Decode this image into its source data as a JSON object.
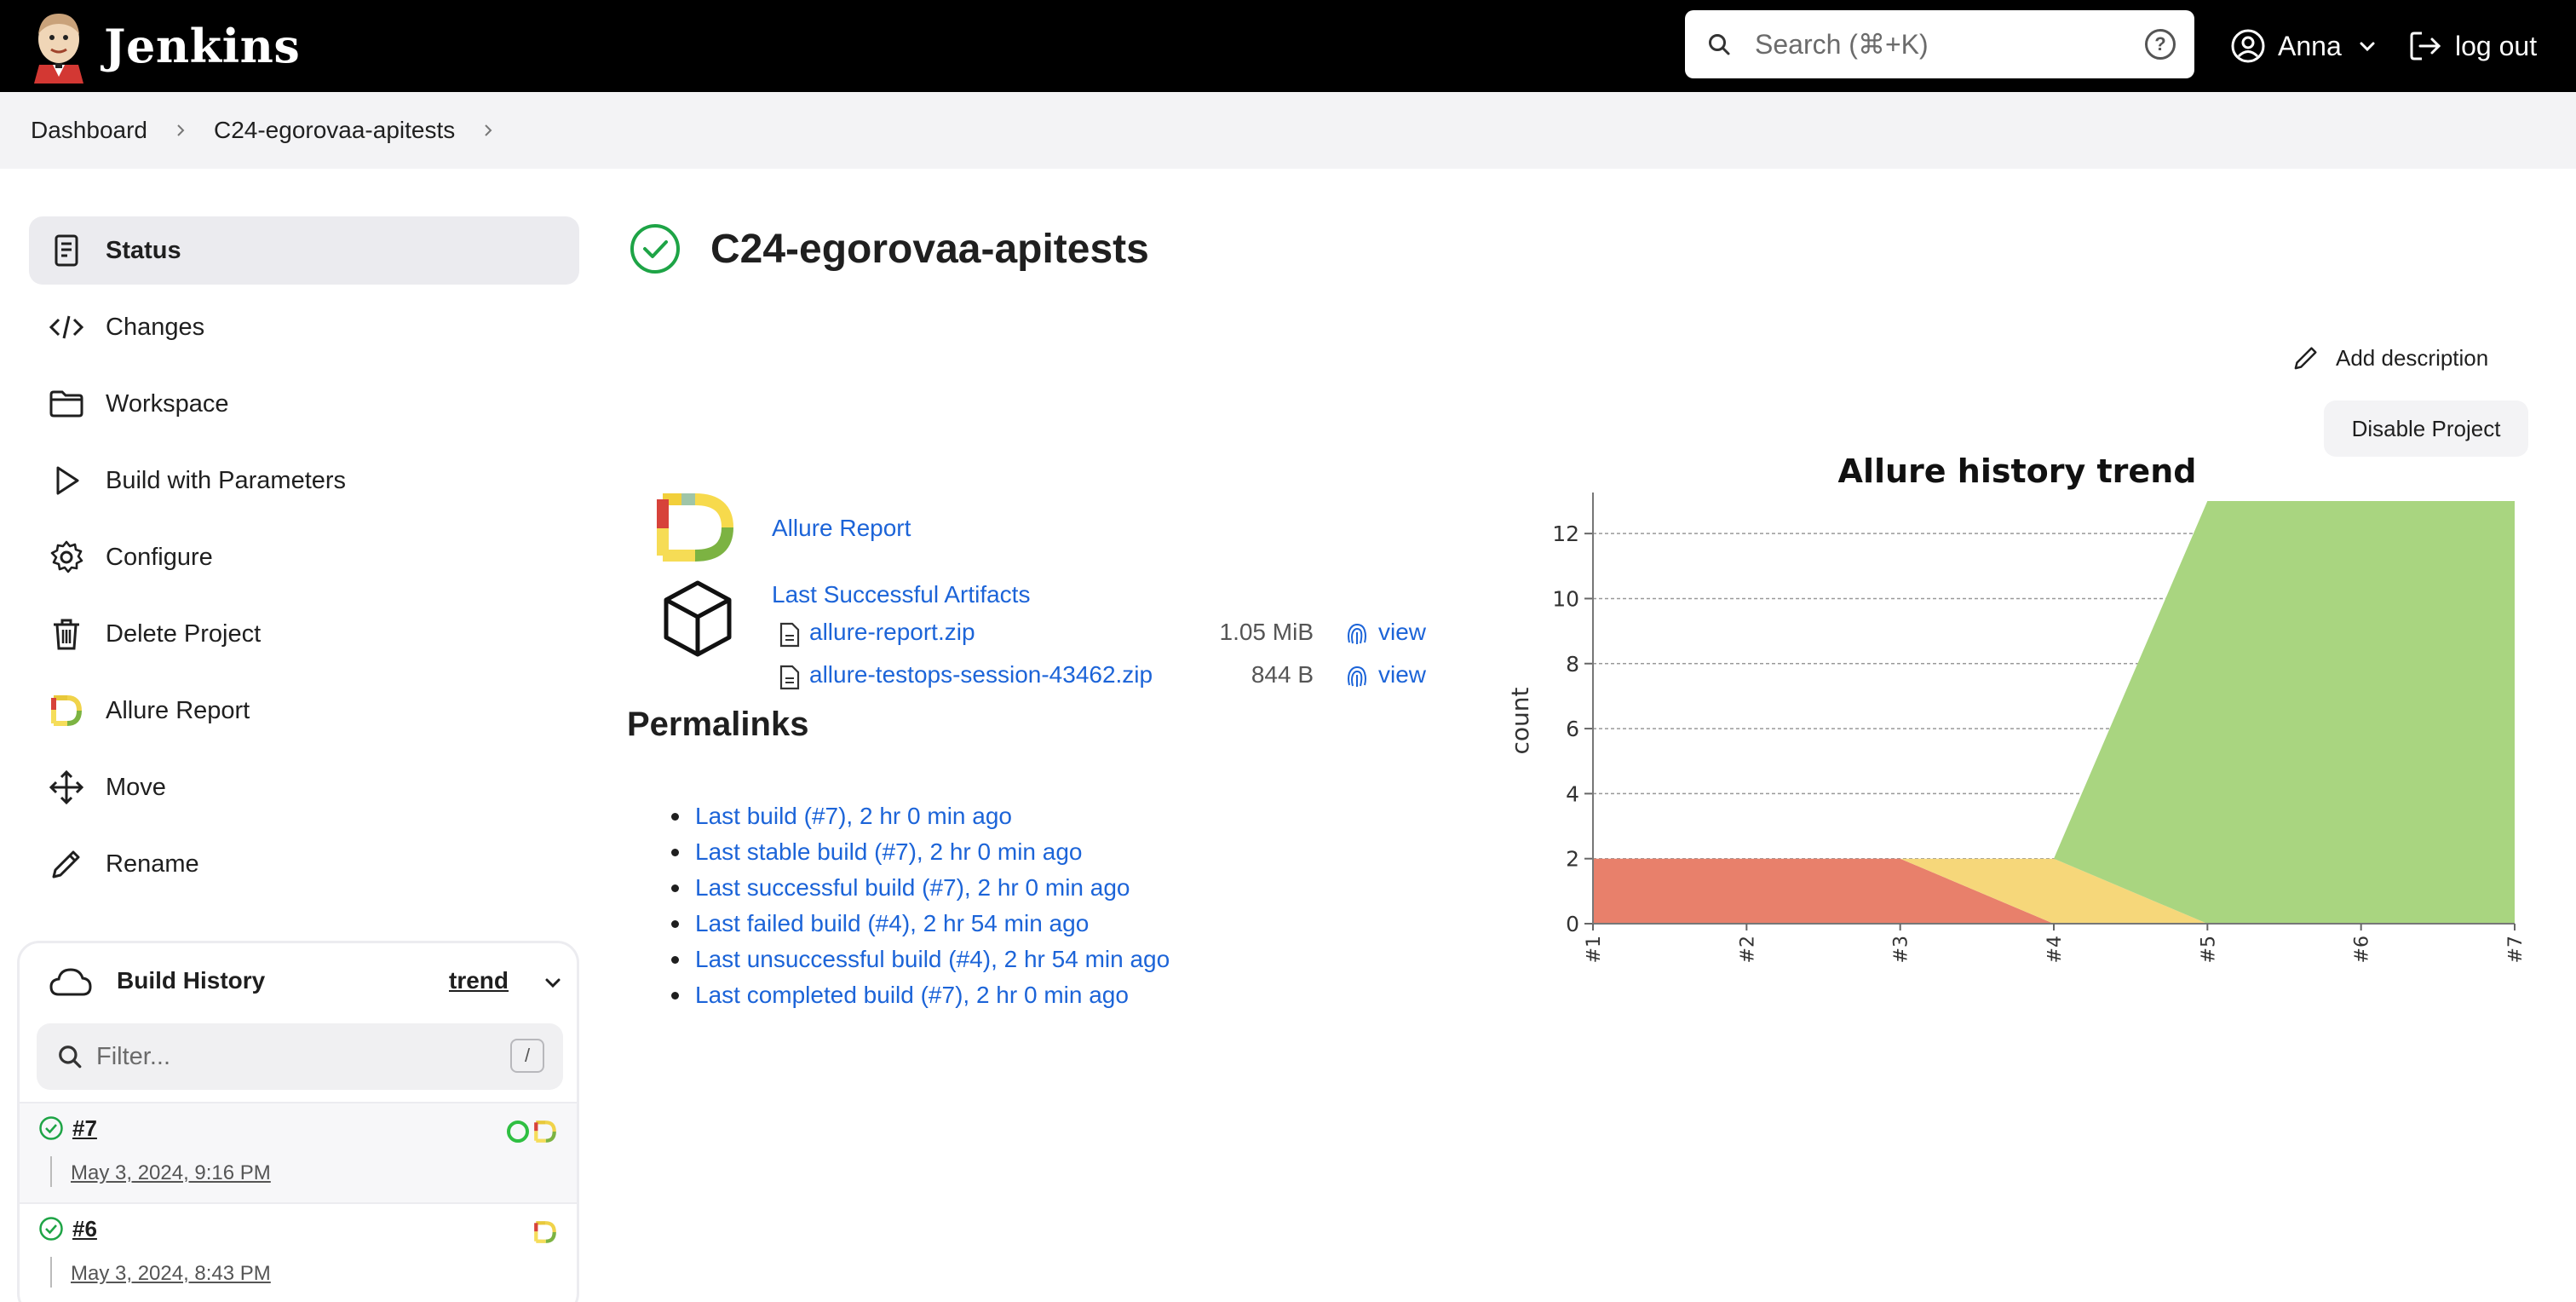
{
  "header": {
    "app_name": "Jenkins",
    "search_placeholder": "Search (⌘+K)",
    "help_label": "?",
    "user_name": "Anna",
    "logout_label": "log out"
  },
  "breadcrumb": [
    "Dashboard",
    "C24-egorovaa-apitests"
  ],
  "sidebar": {
    "items": [
      {
        "label": "Status",
        "icon": "status-icon",
        "active": true
      },
      {
        "label": "Changes",
        "icon": "code-icon"
      },
      {
        "label": "Workspace",
        "icon": "folder-icon"
      },
      {
        "label": "Build with Parameters",
        "icon": "play-icon"
      },
      {
        "label": "Configure",
        "icon": "gear-icon"
      },
      {
        "label": "Delete Project",
        "icon": "trash-icon"
      },
      {
        "label": "Allure Report",
        "icon": "allure-icon"
      },
      {
        "label": "Move",
        "icon": "move-icon"
      },
      {
        "label": "Rename",
        "icon": "pencil-icon"
      }
    ]
  },
  "build_history": {
    "title": "Build History",
    "trend_label": "trend",
    "filter_placeholder": "Filter...",
    "filter_shortcut": "/",
    "builds": [
      {
        "number": "#7",
        "date": "May 3, 2024, 9:16 PM"
      },
      {
        "number": "#6",
        "date": "May 3, 2024, 8:43 PM"
      }
    ]
  },
  "main": {
    "title": "C24-egorovaa-apitests",
    "add_description": "Add description",
    "disable_project": "Disable Project",
    "allure_report_link": "Allure Report",
    "last_successful_artifacts": "Last Successful Artifacts",
    "artifacts": [
      {
        "name": "allure-report.zip",
        "size": "1.05 MiB",
        "view": "view"
      },
      {
        "name": "allure-testops-session-43462.zip",
        "size": "844 B",
        "view": "view"
      }
    ],
    "permalinks_title": "Permalinks",
    "permalinks": [
      "Last build (#7), 2 hr 0 min ago",
      "Last stable build (#7), 2 hr 0 min ago",
      "Last successful build (#7), 2 hr 0 min ago",
      "Last failed build (#4), 2 hr 54 min ago",
      "Last unsuccessful build (#4), 2 hr 54 min ago",
      "Last completed build (#7), 2 hr 0 min ago"
    ]
  },
  "colors": {
    "accent_link": "#1c64d8",
    "success": "#1ea446",
    "failed": "#e8806b",
    "broken": "#f6d77a",
    "passed": "#a9d580"
  },
  "chart_data": {
    "type": "area",
    "title": "Allure history trend",
    "ylabel": "count",
    "xlabel": "",
    "categories": [
      "#1",
      "#2",
      "#3",
      "#4",
      "#5",
      "#6",
      "#7"
    ],
    "ylim": [
      0,
      13
    ],
    "yticks": [
      0,
      2,
      4,
      6,
      8,
      10,
      12
    ],
    "stacked": true,
    "grid": true,
    "series": [
      {
        "values": [
          2,
          2,
          2,
          0,
          0,
          0,
          0
        ],
        "color": "#e8806b"
      },
      {
        "values": [
          0,
          0,
          0,
          2,
          0,
          0,
          0
        ],
        "color": "#f6d77a"
      },
      {
        "values": [
          0,
          0,
          0,
          0,
          13,
          13,
          13
        ],
        "color": "#a9d580"
      }
    ]
  }
}
